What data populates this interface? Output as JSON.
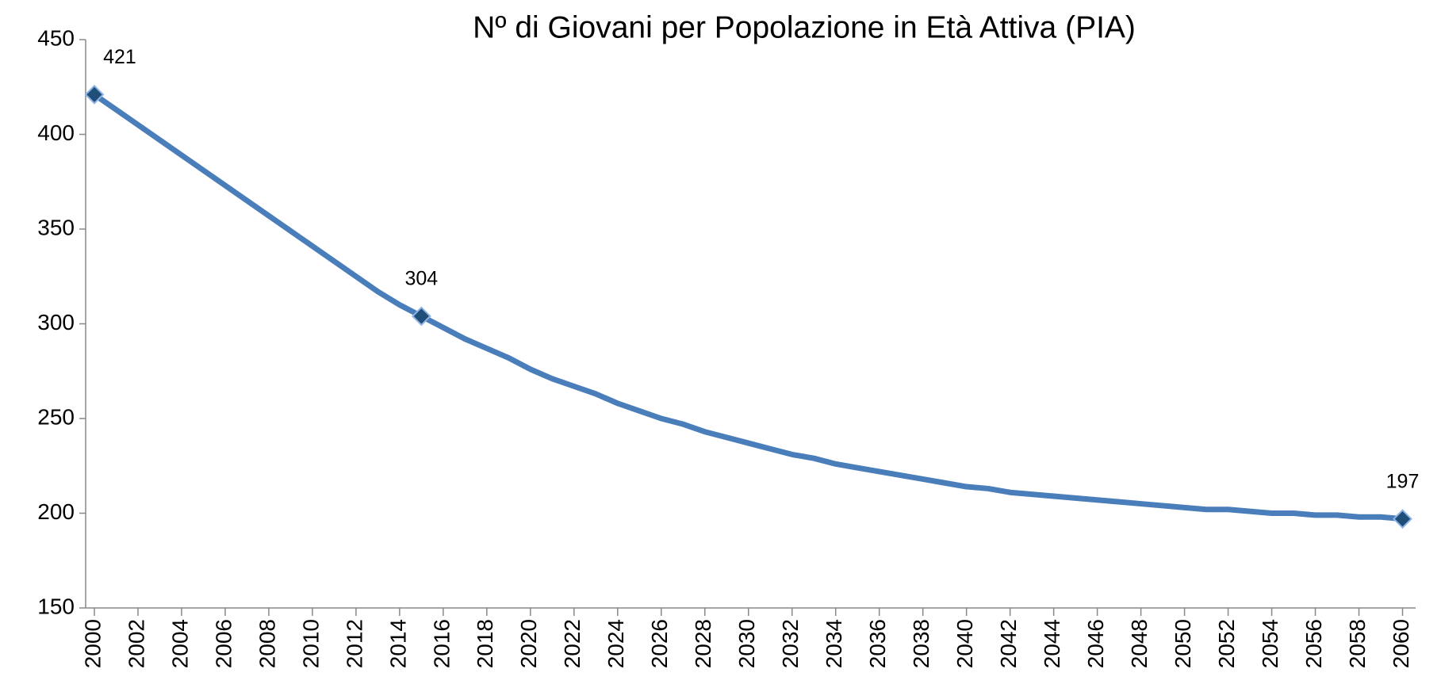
{
  "chart_data": {
    "type": "line",
    "title": "Nº di Giovani per Popolazione in Età Attiva (PIA)",
    "x": [
      2000,
      2001,
      2002,
      2003,
      2004,
      2005,
      2006,
      2007,
      2008,
      2009,
      2010,
      2011,
      2012,
      2013,
      2014,
      2015,
      2016,
      2017,
      2018,
      2019,
      2020,
      2021,
      2022,
      2023,
      2024,
      2025,
      2026,
      2027,
      2028,
      2029,
      2030,
      2031,
      2032,
      2033,
      2034,
      2035,
      2036,
      2037,
      2038,
      2039,
      2040,
      2041,
      2042,
      2043,
      2044,
      2045,
      2046,
      2047,
      2048,
      2049,
      2050,
      2051,
      2052,
      2053,
      2054,
      2055,
      2056,
      2057,
      2058,
      2059,
      2060
    ],
    "values": [
      421,
      413,
      405,
      397,
      389,
      381,
      373,
      365,
      357,
      349,
      341,
      333,
      325,
      317,
      310,
      304,
      298,
      292,
      287,
      282,
      276,
      271,
      267,
      263,
      258,
      254,
      250,
      247,
      243,
      240,
      237,
      234,
      231,
      229,
      226,
      224,
      222,
      220,
      218,
      216,
      214,
      213,
      211,
      210,
      209,
      208,
      207,
      206,
      205,
      204,
      203,
      202,
      202,
      201,
      200,
      200,
      199,
      199,
      198,
      198,
      197
    ],
    "marker_x": [
      2000,
      2015,
      2060
    ],
    "color": "#4a7ebb",
    "marker_color": "#1f4e79",
    "xlim": [
      1999.6,
      2060.6
    ],
    "xticks": [
      2000,
      2002,
      2004,
      2006,
      2008,
      2010,
      2012,
      2014,
      2016,
      2018,
      2020,
      2022,
      2024,
      2026,
      2028,
      2030,
      2032,
      2034,
      2036,
      2038,
      2040,
      2042,
      2044,
      2046,
      2048,
      2050,
      2052,
      2054,
      2056,
      2058,
      2060
    ],
    "ylim": [
      150,
      450
    ],
    "yticks": [
      150,
      200,
      250,
      300,
      350,
      400,
      450
    ],
    "grid": false
  }
}
